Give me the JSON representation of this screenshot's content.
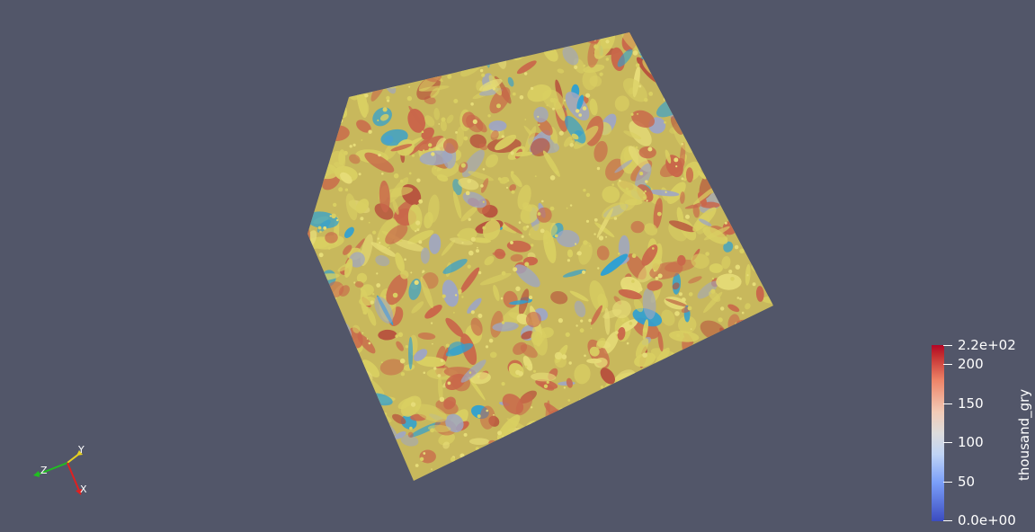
{
  "colorbar": {
    "title": "thousand_gry",
    "max_label": "2.2e+02",
    "min_label": "0.0e+00",
    "ticks": [
      "200",
      "150",
      "100",
      "50"
    ],
    "colors": [
      "#3b4cc0",
      "#dddcdc",
      "#b40426"
    ]
  },
  "axes": {
    "x_label": "X",
    "y_label": "Y",
    "z_label": "Z",
    "x_color": "#e02020",
    "y_color": "#e6d020",
    "z_color": "#20c020"
  },
  "volume": {
    "palette": [
      "#d9cf62",
      "#c9674a",
      "#9fa6c2",
      "#2fa0d2",
      "#e6dc78",
      "#b7543e"
    ]
  }
}
